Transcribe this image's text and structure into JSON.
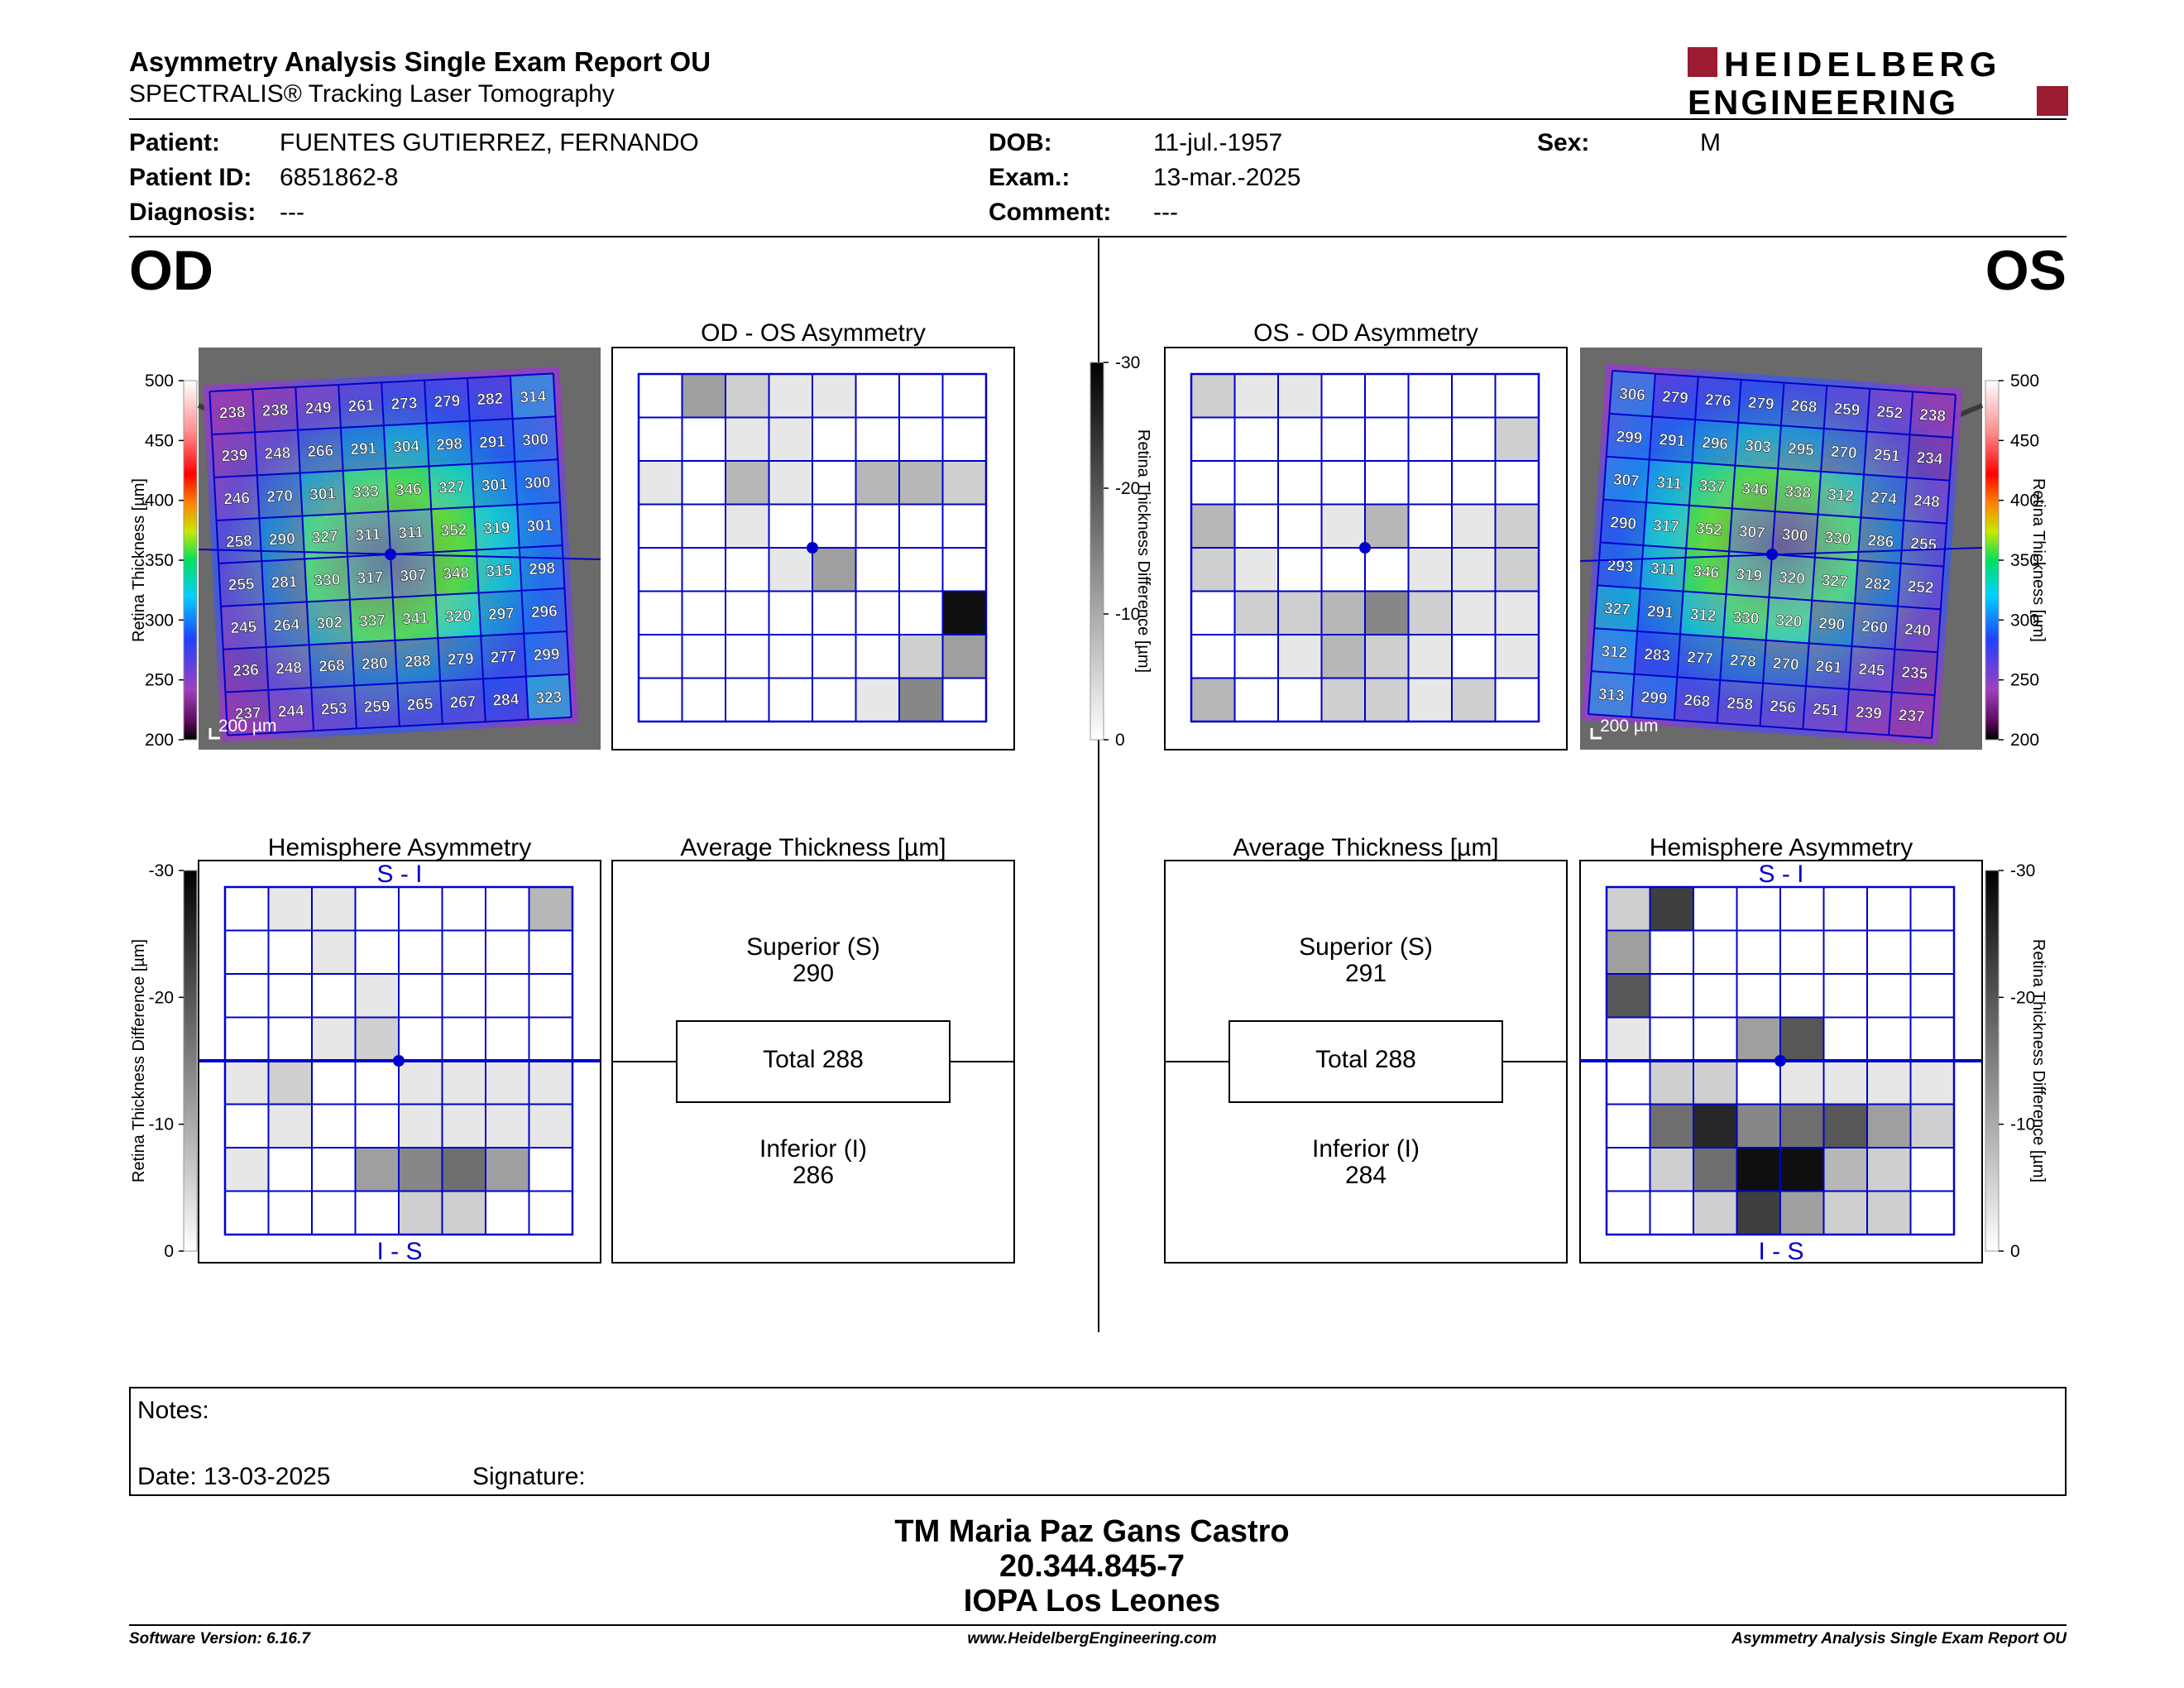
{
  "report": {
    "title": "Asymmetry Analysis Single Exam Report OU",
    "subtitle": "SPECTRALIS® Tracking Laser Tomography"
  },
  "logo": {
    "line1": "HEIDELBERG",
    "line2": "ENGINEERING",
    "brand_color": "#9b1b30"
  },
  "patient": {
    "patient_label": "Patient:",
    "patient_value": "FUENTES GUTIERREZ, FERNANDO",
    "id_label": "Patient ID:",
    "id_value": "6851862-8",
    "diagnosis_label": "Diagnosis:",
    "diagnosis_value": "---",
    "dob_label": "DOB:",
    "dob_value": "11-jul.-1957",
    "exam_label": "Exam.:",
    "exam_value": "13-mar.-2025",
    "comment_label": "Comment:",
    "comment_value": "---",
    "sex_label": "Sex:",
    "sex_value": "M"
  },
  "od": {
    "eye_label": "OD",
    "asym_title": "OD - OS Asymmetry",
    "hemi_title": "Hemisphere Asymmetry",
    "avg_title": "Average Thickness [µm]",
    "scale_text": "200 µm",
    "hemi_top_label": "S - I",
    "hemi_bottom_label": "I - S",
    "superior_label": "Superior (S)",
    "superior_value": "290",
    "total_text": "Total 288",
    "inferior_label": "Inferior (I)",
    "inferior_value": "286",
    "thickness_grid": [
      [
        238,
        238,
        249,
        261,
        273,
        279,
        282,
        314
      ],
      [
        239,
        248,
        266,
        291,
        304,
        298,
        291,
        300
      ],
      [
        246,
        270,
        301,
        333,
        346,
        327,
        301,
        300
      ],
      [
        258,
        290,
        327,
        311,
        311,
        352,
        319,
        301
      ],
      [
        255,
        281,
        330,
        317,
        307,
        348,
        315,
        298
      ],
      [
        245,
        264,
        302,
        337,
        341,
        320,
        297,
        296
      ],
      [
        236,
        248,
        268,
        280,
        288,
        279,
        277,
        299
      ],
      [
        237,
        244,
        253,
        259,
        265,
        267,
        284,
        323
      ]
    ],
    "asym_grid_shades": [
      [
        0,
        4,
        2,
        1,
        1,
        0,
        0,
        0
      ],
      [
        0,
        0,
        1,
        1,
        0,
        0,
        0,
        0
      ],
      [
        1,
        0,
        3,
        1,
        0,
        3,
        3,
        2
      ],
      [
        0,
        0,
        1,
        0,
        0,
        0,
        0,
        0
      ],
      [
        0,
        0,
        0,
        1,
        4,
        0,
        0,
        0
      ],
      [
        0,
        0,
        0,
        0,
        0,
        0,
        0,
        10
      ],
      [
        0,
        0,
        0,
        0,
        0,
        0,
        2,
        4
      ],
      [
        0,
        0,
        0,
        0,
        0,
        1,
        5,
        0
      ]
    ],
    "hemi_grid_shades": [
      [
        0,
        1,
        1,
        0,
        0,
        0,
        0,
        3
      ],
      [
        0,
        0,
        1,
        0,
        0,
        0,
        0,
        0
      ],
      [
        0,
        0,
        0,
        1,
        0,
        0,
        0,
        0
      ],
      [
        0,
        0,
        1,
        2,
        0,
        0,
        0,
        0
      ],
      [
        1,
        2,
        0,
        0,
        1,
        1,
        1,
        1
      ],
      [
        0,
        1,
        0,
        0,
        1,
        1,
        1,
        1
      ],
      [
        1,
        0,
        0,
        4,
        5,
        6,
        4,
        0
      ],
      [
        0,
        0,
        0,
        0,
        2,
        2,
        0,
        0
      ]
    ]
  },
  "os": {
    "eye_label": "OS",
    "asym_title": "OS - OD Asymmetry",
    "hemi_title": "Hemisphere Asymmetry",
    "avg_title": "Average Thickness [µm]",
    "scale_text": "200 µm",
    "hemi_top_label": "S - I",
    "hemi_bottom_label": "I - S",
    "superior_label": "Superior (S)",
    "superior_value": "291",
    "total_text": "Total 288",
    "inferior_label": "Inferior (I)",
    "inferior_value": "284",
    "thickness_grid": [
      [
        306,
        279,
        276,
        279,
        268,
        259,
        252,
        238
      ],
      [
        299,
        291,
        296,
        303,
        295,
        270,
        251,
        234
      ],
      [
        307,
        311,
        337,
        346,
        338,
        312,
        274,
        248
      ],
      [
        290,
        317,
        352,
        307,
        300,
        330,
        286,
        255
      ],
      [
        293,
        311,
        346,
        319,
        320,
        327,
        282,
        252
      ],
      [
        327,
        291,
        312,
        330,
        320,
        290,
        260,
        240
      ],
      [
        312,
        283,
        277,
        278,
        270,
        261,
        245,
        235
      ],
      [
        313,
        299,
        268,
        258,
        256,
        251,
        239,
        237
      ]
    ],
    "asym_grid_shades": [
      [
        2,
        1,
        1,
        0,
        0,
        0,
        0,
        0
      ],
      [
        0,
        0,
        0,
        0,
        0,
        0,
        0,
        2
      ],
      [
        0,
        0,
        0,
        0,
        0,
        0,
        0,
        0
      ],
      [
        3,
        0,
        0,
        1,
        3,
        0,
        1,
        2
      ],
      [
        2,
        1,
        0,
        0,
        0,
        1,
        1,
        2
      ],
      [
        0,
        2,
        2,
        3,
        5,
        2,
        1,
        1
      ],
      [
        0,
        0,
        1,
        3,
        2,
        1,
        0,
        1
      ],
      [
        3,
        0,
        0,
        2,
        2,
        1,
        2,
        0
      ]
    ],
    "hemi_grid_shades": [
      [
        2,
        8,
        0,
        0,
        0,
        0,
        0,
        0
      ],
      [
        4,
        0,
        0,
        0,
        0,
        0,
        0,
        0
      ],
      [
        7,
        0,
        0,
        0,
        0,
        0,
        0,
        0
      ],
      [
        1,
        0,
        0,
        4,
        7,
        0,
        0,
        0
      ],
      [
        0,
        2,
        2,
        0,
        1,
        1,
        1,
        1
      ],
      [
        0,
        6,
        9,
        5,
        6,
        7,
        4,
        2
      ],
      [
        0,
        2,
        6,
        10,
        10,
        3,
        2,
        0
      ],
      [
        0,
        0,
        2,
        8,
        4,
        2,
        2,
        0
      ]
    ]
  },
  "axes": {
    "thickness_label": "Retina Thickness [µm]",
    "thickness_ticks": [
      "500",
      "450",
      "400",
      "350",
      "300",
      "250",
      "200"
    ],
    "diff_label": "Retina Thickness Difference [µm]",
    "diff_ticks": [
      "-30",
      "-20",
      "-10",
      "0"
    ],
    "grid_color": "#0000cc"
  },
  "notes": {
    "notes_label": "Notes:",
    "date_text": "Date: 13-03-2025",
    "signature_label": "Signature:"
  },
  "signature_block": {
    "name": "TM Maria Paz Gans Castro",
    "id": "20.344.845-7",
    "clinic": "IOPA Los Leones"
  },
  "footer": {
    "version": "Software Version: 6.16.7",
    "website": "www.HeidelbergEngineering.com",
    "report_name": "Asymmetry Analysis Single Exam Report OU"
  }
}
